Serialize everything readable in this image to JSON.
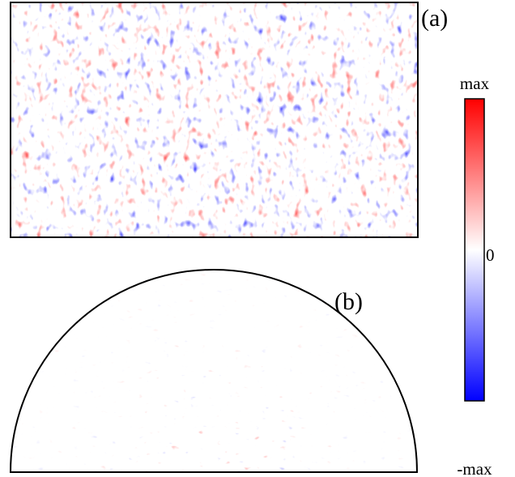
{
  "panels": [
    {
      "label": "(a)"
    },
    {
      "label": "(b)"
    }
  ],
  "colorbar": {
    "top_label": "max",
    "middle_label": "0",
    "bottom_label": "-max"
  }
}
